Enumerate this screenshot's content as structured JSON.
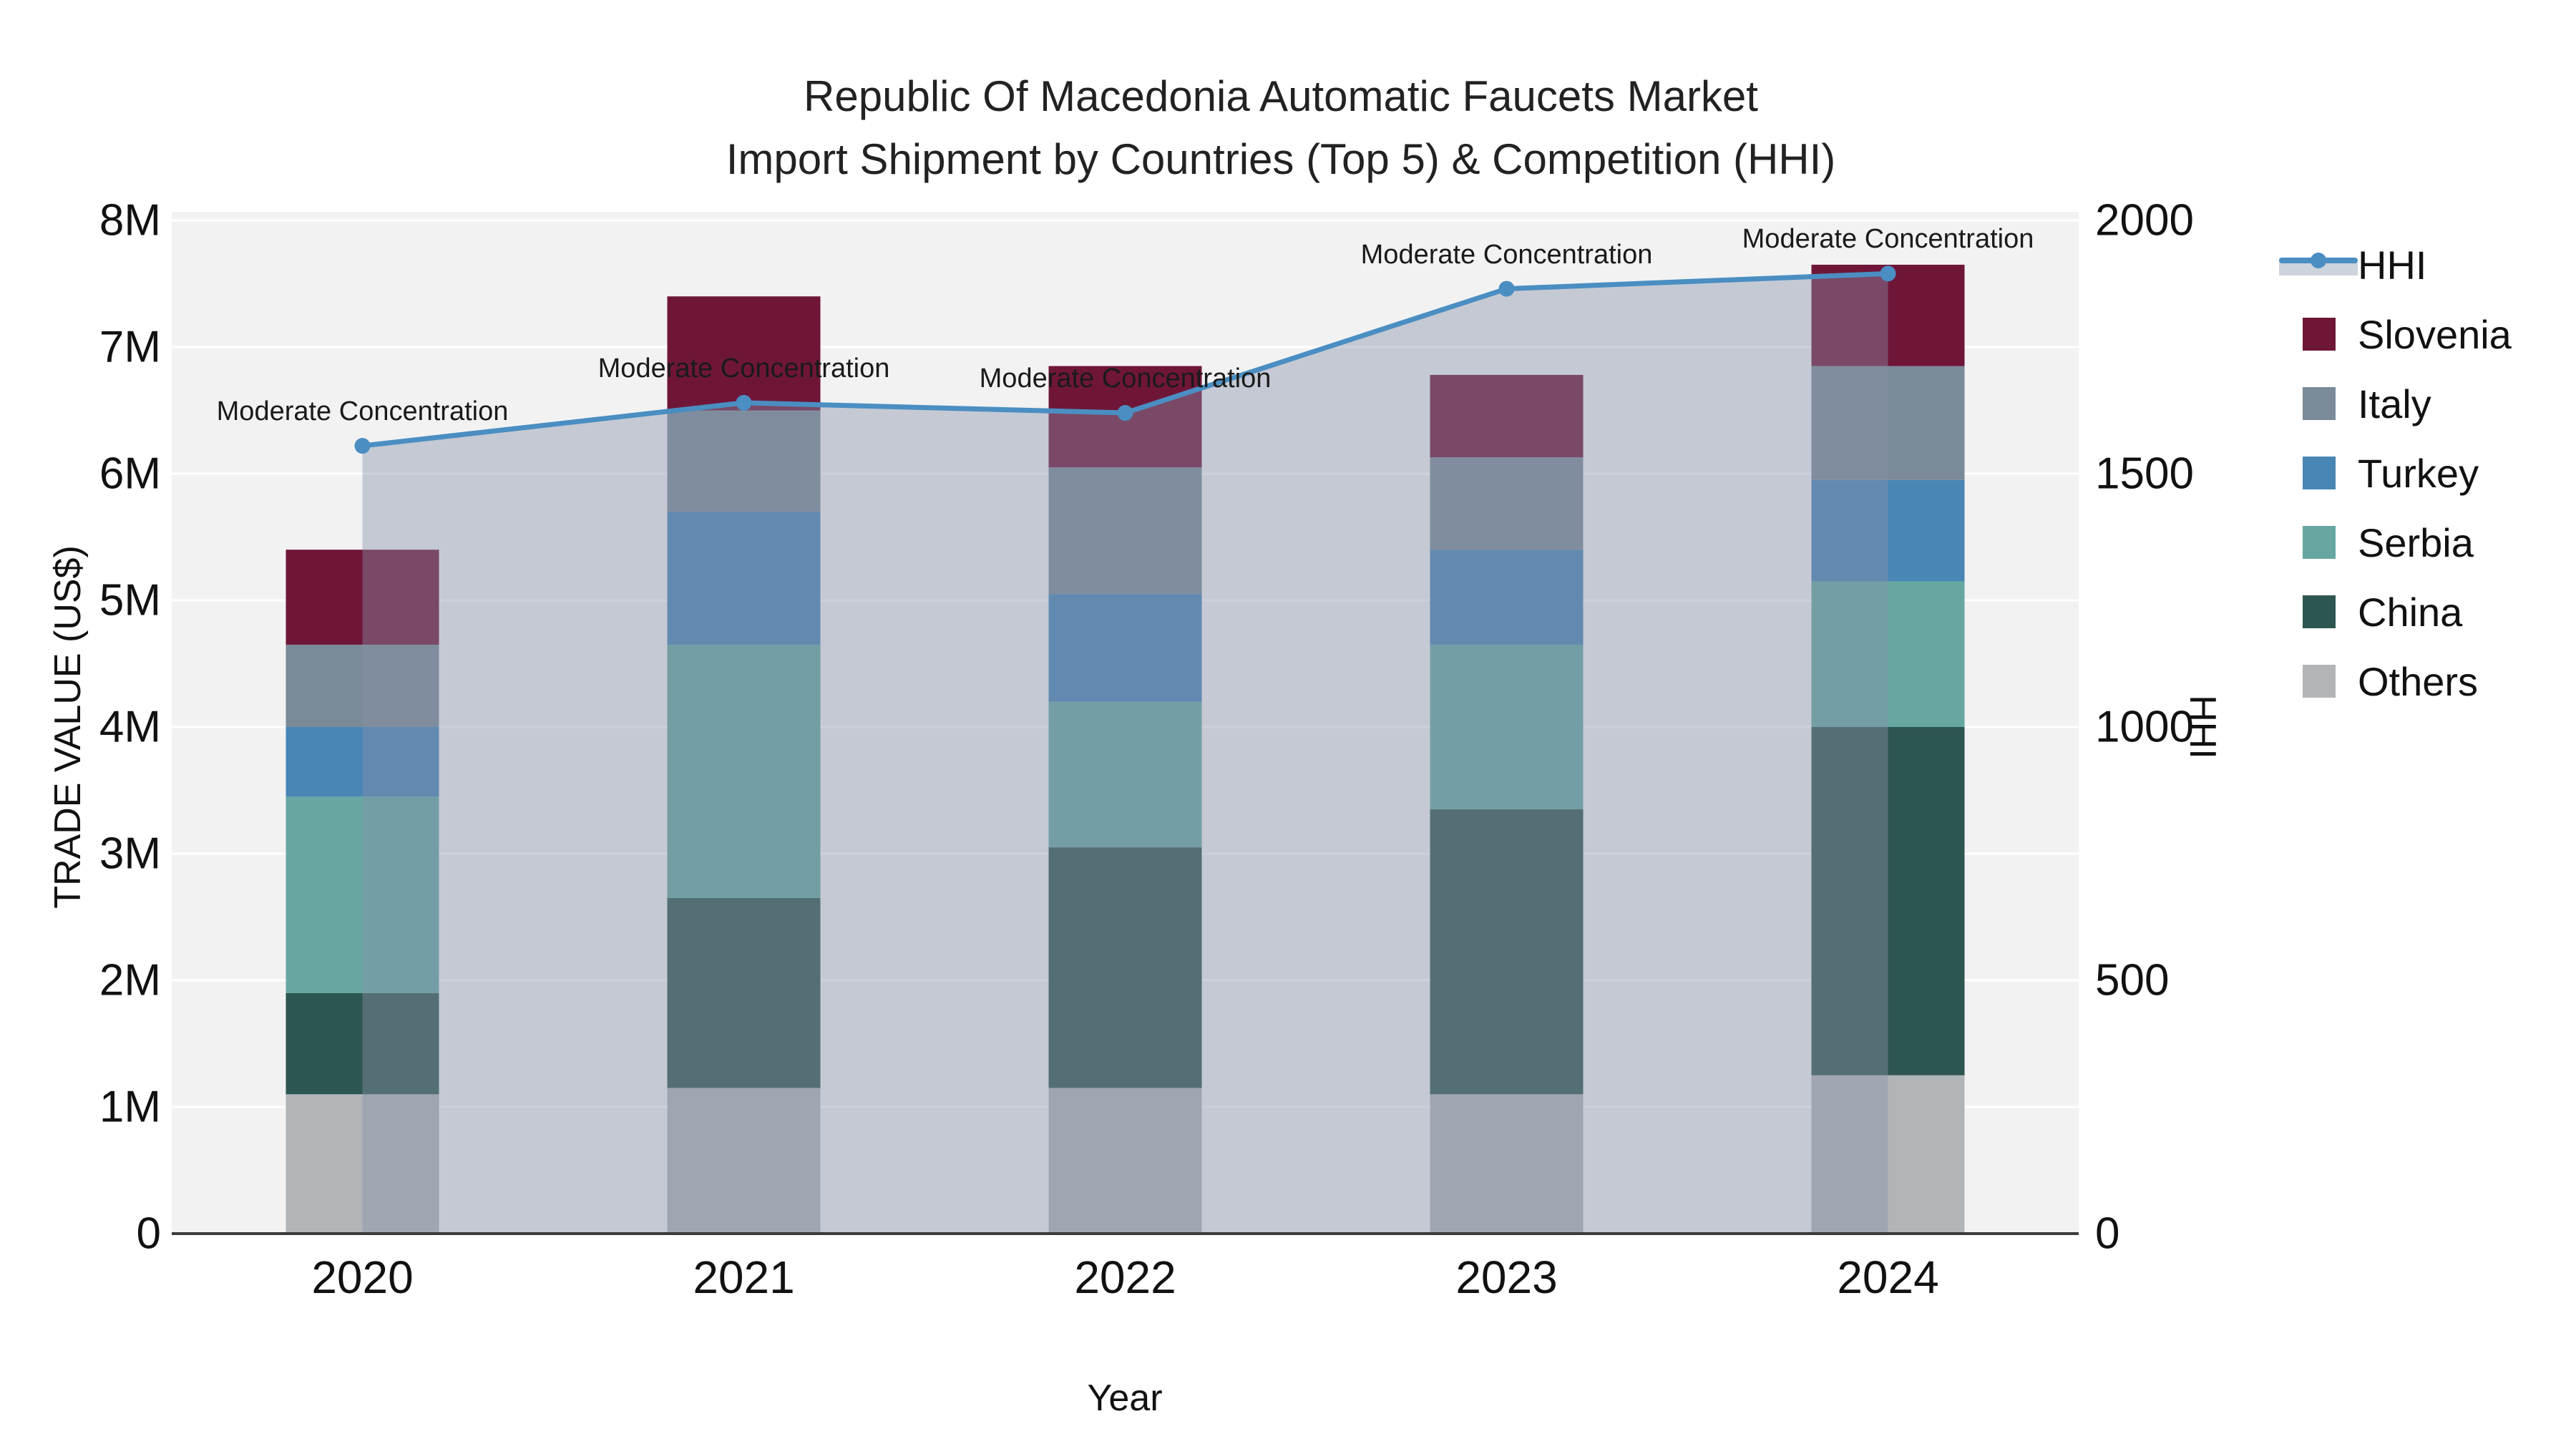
{
  "title": {
    "line1": "Republic Of Macedonia Automatic Faucets Market",
    "line2": "Import Shipment by Countries (Top 5) & Competition (HHI)"
  },
  "axes": {
    "x": {
      "title": "Year",
      "categories": [
        "2020",
        "2021",
        "2022",
        "2023",
        "2024"
      ]
    },
    "y_left": {
      "title": "TRADE VALUE (US$)",
      "tick_labels": [
        "0",
        "1M",
        "2M",
        "3M",
        "4M",
        "5M",
        "6M",
        "7M",
        "8M"
      ],
      "tick_values": [
        0,
        1000000,
        2000000,
        3000000,
        4000000,
        5000000,
        6000000,
        7000000,
        8000000
      ],
      "range": [
        0,
        8000000
      ]
    },
    "y_right": {
      "title": "HHI",
      "tick_labels": [
        "0",
        "500",
        "1000",
        "1500",
        "2000"
      ],
      "tick_values": [
        0,
        500,
        1000,
        1500,
        2000
      ],
      "range": [
        0,
        2000
      ]
    }
  },
  "legend": {
    "items": [
      {
        "label": "HHI",
        "type": "line",
        "color": "#4a8ec2"
      },
      {
        "label": "Slovenia",
        "type": "swatch",
        "color": "#6f1638"
      },
      {
        "label": "Italy",
        "type": "swatch",
        "color": "#7b8a98"
      },
      {
        "label": "Turkey",
        "type": "swatch",
        "color": "#4886b5"
      },
      {
        "label": "Serbia",
        "type": "swatch",
        "color": "#66a7a2"
      },
      {
        "label": "China",
        "type": "swatch",
        "color": "#2e5650"
      },
      {
        "label": "Others",
        "type": "swatch",
        "color": "#b2b5b7"
      }
    ]
  },
  "chart_data": {
    "type": "bar+line",
    "categories": [
      "2020",
      "2021",
      "2022",
      "2023",
      "2024"
    ],
    "stack_order_bottom_to_top": [
      "Others",
      "China",
      "Serbia",
      "Turkey",
      "Italy",
      "Slovenia"
    ],
    "series": [
      {
        "name": "Others",
        "color": "#b2b5b7",
        "values": [
          1100000,
          1150000,
          1150000,
          1100000,
          1250000
        ]
      },
      {
        "name": "China",
        "color": "#2e5650",
        "values": [
          800000,
          1500000,
          1900000,
          2250000,
          2750000
        ]
      },
      {
        "name": "Serbia",
        "color": "#66a7a2",
        "values": [
          1550000,
          2000000,
          1150000,
          1300000,
          1150000
        ]
      },
      {
        "name": "Turkey",
        "color": "#4886b5",
        "values": [
          550000,
          1050000,
          850000,
          750000,
          800000
        ]
      },
      {
        "name": "Italy",
        "color": "#7b8a98",
        "values": [
          650000,
          800000,
          1000000,
          730000,
          900000
        ]
      },
      {
        "name": "Slovenia",
        "color": "#6f1638",
        "values": [
          750000,
          900000,
          800000,
          650000,
          800000
        ]
      }
    ],
    "bar_totals": [
      5400000,
      7400000,
      6850000,
      6780000,
      7650000
    ],
    "line_series": {
      "name": "HHI",
      "axis": "right",
      "color": "#4a8ec2",
      "values": [
        1555,
        1640,
        1620,
        1865,
        1895
      ],
      "area_fill": "rgba(135,145,170,0.42)"
    },
    "annotations": [
      {
        "x": "2020",
        "text": "Moderate Concentration"
      },
      {
        "x": "2021",
        "text": "Moderate Concentration"
      },
      {
        "x": "2022",
        "text": "Moderate Concentration"
      },
      {
        "x": "2023",
        "text": "Moderate Concentration"
      },
      {
        "x": "2024",
        "text": "Moderate Concentration"
      }
    ],
    "plot_style": {
      "background": "#f2f2f3",
      "grid_color": "#ffffff",
      "axis_line_color": "#3b3b3b"
    },
    "legend_position": "right",
    "grid": true
  }
}
